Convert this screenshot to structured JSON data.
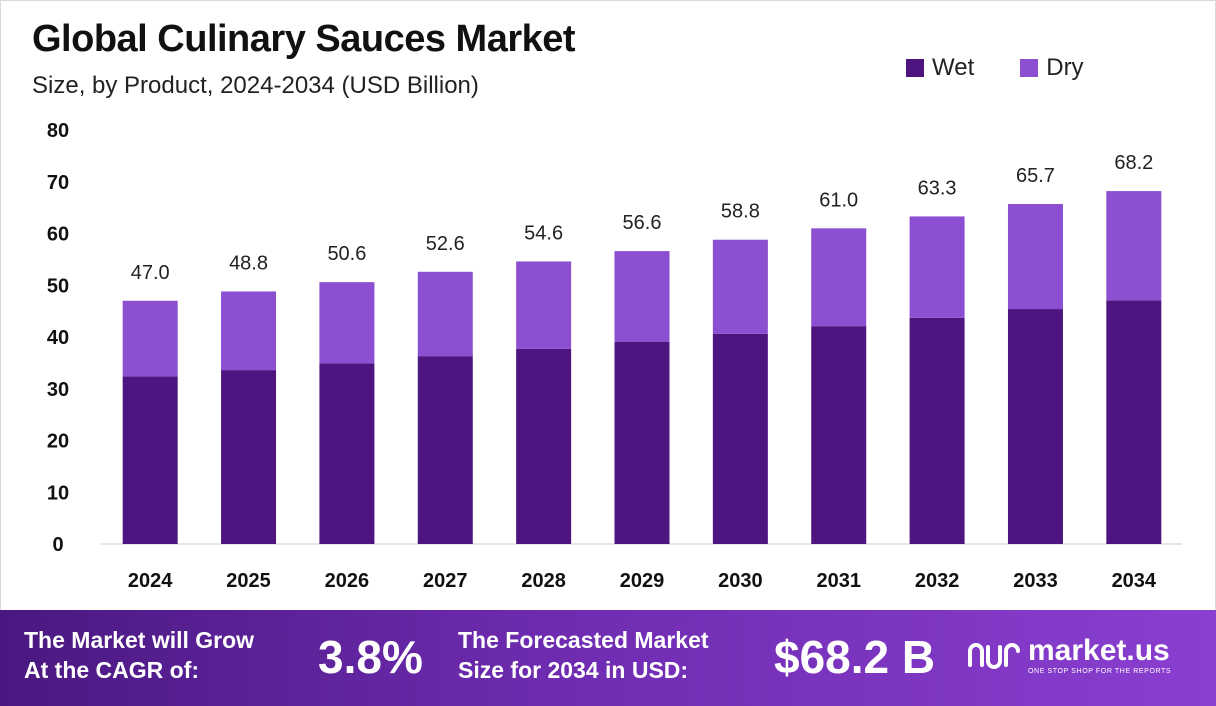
{
  "chart_data": {
    "type": "bar",
    "stacked": true,
    "title": "Global Culinary Sauces Market",
    "subtitle": "Size, by Product, 2024-2034 (USD Billion)",
    "categories": [
      "2024",
      "2025",
      "2026",
      "2027",
      "2028",
      "2029",
      "2030",
      "2031",
      "2032",
      "2033",
      "2034"
    ],
    "series": [
      {
        "name": "Wet",
        "color": "#4e1580",
        "values": [
          32.4,
          33.6,
          34.9,
          36.3,
          37.7,
          39.1,
          40.6,
          42.1,
          43.7,
          45.4,
          47.1
        ]
      },
      {
        "name": "Dry",
        "color": "#8c4fd1",
        "values": [
          14.6,
          15.2,
          15.7,
          16.3,
          16.9,
          17.5,
          18.2,
          18.9,
          19.6,
          20.3,
          21.1
        ]
      }
    ],
    "totals": [
      "47.0",
      "48.8",
      "50.6",
      "52.6",
      "54.6",
      "56.6",
      "58.8",
      "61.0",
      "63.3",
      "65.7",
      "68.2"
    ],
    "totals_values": [
      47.0,
      48.8,
      50.6,
      52.6,
      54.6,
      56.6,
      58.8,
      61.0,
      63.3,
      65.7,
      68.2
    ],
    "yticks": [
      0,
      10,
      20,
      30,
      40,
      50,
      60,
      70,
      80
    ],
    "ylim": [
      0,
      80
    ],
    "grid": false,
    "legend": "top-right"
  },
  "footer": {
    "cagr_label_line1": "The Market will Grow",
    "cagr_label_line2": "At the CAGR of:",
    "cagr_value": "3.8%",
    "forecast_label_line1": "The Forecasted Market",
    "forecast_label_line2": "Size for 2034 in USD:",
    "forecast_value": "$68.2 B",
    "brand_name": "market.us",
    "brand_tagline": "ONE STOP SHOP FOR THE REPORTS"
  },
  "colors": {
    "wet": "#4e1580",
    "dry": "#8c4fd1",
    "footer_start": "#4a1880",
    "footer_end": "#8a3fd0"
  }
}
